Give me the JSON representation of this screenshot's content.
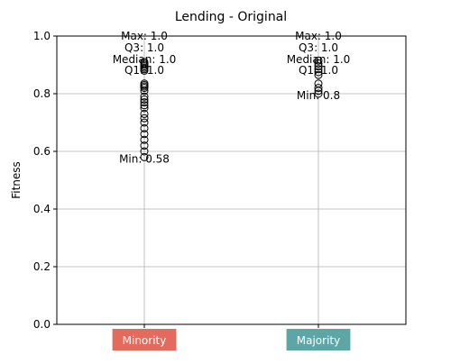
{
  "chart_data": {
    "type": "box",
    "title": "Lending - Original",
    "xlabel": "",
    "ylabel": "Fitness",
    "ylim": [
      0,
      1.0
    ],
    "yticks": [
      "0.0",
      "0.2",
      "0.4",
      "0.6",
      "0.8",
      "1.0"
    ],
    "grid": true,
    "categories": [
      {
        "name": "Minority",
        "color": "#e36b5d",
        "max": 1.0,
        "q3": 1.0,
        "median": 1.0,
        "q1": 1.0,
        "min": 0.58,
        "stat_labels": {
          "max": "Max: 1.0",
          "q3": "Q3: 1.0",
          "median": "Median: 1.0",
          "q1": "Q1: 1.0",
          "min": "Min: 0.58"
        },
        "outliers": [
          0.91,
          0.905,
          0.9,
          0.895,
          0.89,
          0.885,
          0.88,
          0.835,
          0.83,
          0.825,
          0.82,
          0.81,
          0.79,
          0.78,
          0.77,
          0.76,
          0.75,
          0.73,
          0.715,
          0.7,
          0.68,
          0.66,
          0.64,
          0.62,
          0.6,
          0.58
        ]
      },
      {
        "name": "Majority",
        "color": "#5ea6a6",
        "max": 1.0,
        "q3": 1.0,
        "median": 1.0,
        "q1": 1.0,
        "min": 0.8,
        "stat_labels": {
          "max": "Max: 1.0",
          "q3": "Q3: 1.0",
          "median": "Median: 1.0",
          "q1": "Q1: 1.0",
          "min": "Min: 0.8"
        },
        "outliers": [
          0.915,
          0.905,
          0.895,
          0.885,
          0.875,
          0.865,
          0.835,
          0.82,
          0.81,
          0.8
        ]
      }
    ]
  }
}
